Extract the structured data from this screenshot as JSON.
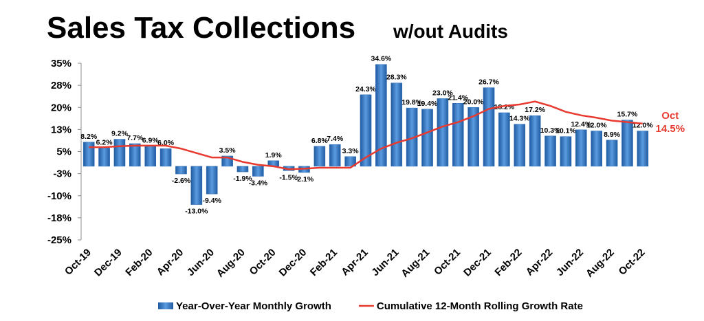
{
  "chart_data": {
    "type": "bar",
    "title": "Sales Tax Collections",
    "subtitle": "w/out Audits",
    "categories": [
      "Oct-19",
      null,
      "Dec-19",
      null,
      "Feb-20",
      null,
      "Apr-20",
      null,
      "Jun-20",
      null,
      "Aug-20",
      null,
      "Oct-20",
      null,
      "Dec-20",
      null,
      "Feb-21",
      null,
      "Apr-21",
      null,
      "Jun-21",
      null,
      "Aug-21",
      null,
      "Oct-21",
      null,
      "Dec-21",
      null,
      "Feb-22",
      null,
      "Apr-22",
      null,
      "Jun-22",
      null,
      "Aug-22",
      null,
      "Oct-22"
    ],
    "series": [
      {
        "name": "Year-Over-Year Monthly Growth",
        "type": "bar",
        "color": "#2f6fb8",
        "values": [
          8.2,
          6.2,
          9.2,
          7.7,
          6.9,
          6.0,
          -2.6,
          -13.0,
          -9.4,
          3.5,
          -1.9,
          -3.4,
          1.9,
          -1.5,
          -2.1,
          6.8,
          7.4,
          3.3,
          24.3,
          34.6,
          28.3,
          19.8,
          19.4,
          23.0,
          21.4,
          20.0,
          26.7,
          18.2,
          14.3,
          17.2,
          10.3,
          10.1,
          12.4,
          12.0,
          8.9,
          15.7,
          12.0
        ],
        "value_labels": [
          "8.2%",
          "6.2%",
          "9.2%",
          "7.7%",
          "6.9%",
          "6.0%",
          "-2.6%",
          "-13.0%",
          "-9.4%",
          "3.5%",
          "-1.9%",
          "-3.4%",
          "1.9%",
          "-1.5%",
          "-2.1%",
          "6.8%",
          "7.4%",
          "3.3%",
          "24.3%",
          "34.6%",
          "28.3%",
          "19.8%",
          "19.4%",
          "23.0%",
          "21.4%",
          "20.0%",
          "26.7%",
          "18.2%",
          "14.3%",
          "17.2%",
          "10.3%",
          "10.1%",
          "12.4%",
          "12.0%",
          "8.9%",
          "15.7%",
          "12.0%"
        ]
      },
      {
        "name": "Cumulative 12-Month Rolling Growth Rate",
        "type": "line",
        "color": "#e8392f",
        "values": [
          6.5,
          6.5,
          6.8,
          7.0,
          7.0,
          7.0,
          6.0,
          4.5,
          3.0,
          3.0,
          1.5,
          0.5,
          0.0,
          -1.0,
          -0.8,
          -0.5,
          -0.5,
          -0.5,
          3.0,
          6.0,
          8.0,
          9.5,
          11.5,
          13.5,
          15.0,
          17.0,
          19.5,
          20.5,
          21.0,
          22.0,
          20.5,
          18.5,
          17.3,
          16.5,
          15.5,
          15.0,
          14.5
        ],
        "value_labels": [
          null,
          null,
          null,
          null,
          null,
          null,
          null,
          null,
          null,
          null,
          null,
          null,
          null,
          null,
          null,
          null,
          null,
          null,
          null,
          null,
          null,
          null,
          null,
          null,
          null,
          null,
          null,
          null,
          null,
          null,
          null,
          null,
          null,
          null,
          null,
          null,
          "14.5%"
        ]
      }
    ],
    "annotation": "Oct",
    "ylim": [
      -25,
      35
    ],
    "yticks": [
      {
        "value": 35,
        "label": "35%"
      },
      {
        "value": 27.5,
        "label": "28%"
      },
      {
        "value": 20,
        "label": "20%"
      },
      {
        "value": 12.5,
        "label": "13%"
      },
      {
        "value": 5,
        "label": "5%"
      },
      {
        "value": -2.5,
        "label": "-3%"
      },
      {
        "value": -10,
        "label": "-10%"
      },
      {
        "value": -17.5,
        "label": "-18%"
      },
      {
        "value": -25,
        "label": "-25%"
      }
    ],
    "legend": "bottom"
  }
}
